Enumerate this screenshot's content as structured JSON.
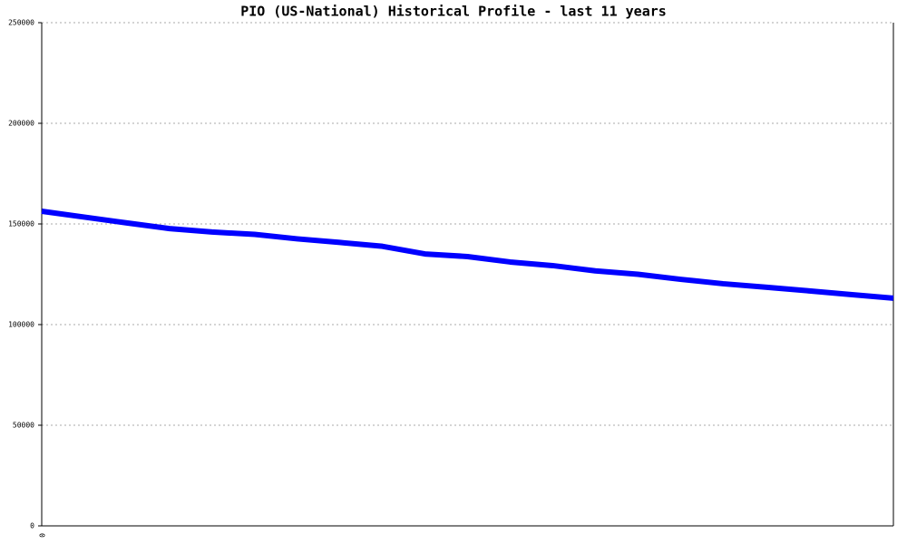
{
  "chart_data": {
    "type": "line",
    "title": "PIO (US-National) Historical Profile - last 11 years",
    "categories": [
      "0",
      null,
      null,
      null,
      null,
      null,
      null,
      null,
      null,
      null,
      null,
      null,
      null,
      null,
      null,
      null,
      null,
      null,
      null,
      null,
      null
    ],
    "series": [
      {
        "name": "PIO",
        "color": "#0000ff",
        "values": [
          156300,
          153400,
          150500,
          147700,
          146000,
          144800,
          142600,
          140800,
          138900,
          135100,
          133800,
          131100,
          129300,
          126700,
          125000,
          122500,
          120300,
          118600,
          116800,
          114900,
          113100
        ]
      }
    ],
    "ylim": [
      0,
      250000
    ],
    "yticks": [
      0,
      50000,
      100000,
      150000,
      200000,
      250000
    ],
    "grid": true
  }
}
